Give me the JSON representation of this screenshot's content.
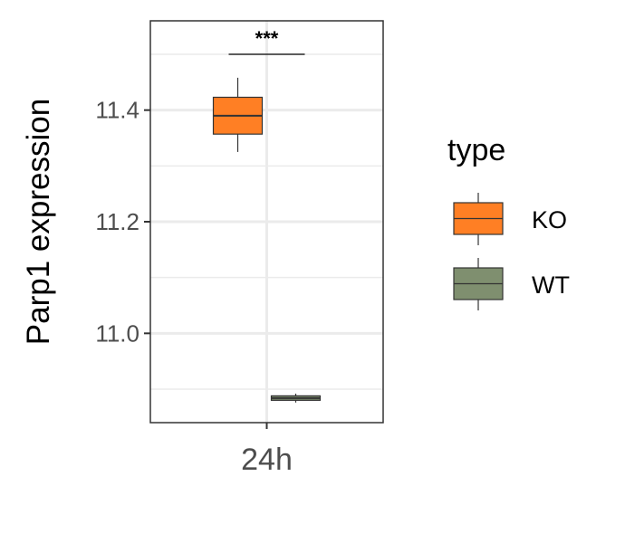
{
  "chart_data": {
    "type": "boxplot",
    "title": "",
    "xlabel": "",
    "ylabel": "Parp1 expression",
    "categories": [
      "24h"
    ],
    "ylim": [
      10.84,
      11.56
    ],
    "yticks": [
      11.0,
      11.2,
      11.4
    ],
    "ytick_labels": [
      "11.0",
      "11.2",
      "11.4"
    ],
    "grid": true,
    "legend": {
      "title": "type",
      "position": "right",
      "entries": [
        {
          "label": "KO",
          "color": "#FF7F24"
        },
        {
          "label": "WT",
          "color": "#7F8F6F"
        }
      ]
    },
    "series": [
      {
        "name": "KO",
        "category": "24h",
        "color": "#FF7F24",
        "min": 11.325,
        "q1": 11.357,
        "median": 11.39,
        "q3": 11.423,
        "max": 11.458
      },
      {
        "name": "WT",
        "category": "24h",
        "color": "#7F8F6F",
        "min": 10.876,
        "q1": 10.88,
        "median": 10.884,
        "q3": 10.888,
        "max": 10.892
      }
    ],
    "annotations": [
      {
        "text": "***",
        "between": [
          "KO",
          "WT"
        ],
        "y": 11.5
      }
    ]
  }
}
